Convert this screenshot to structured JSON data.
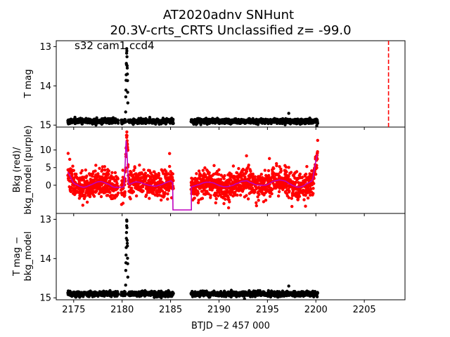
{
  "chart_data": {
    "type": "scatter",
    "title_line1": "AT2020adnv  SNHunt",
    "title_line2": "20.3V-crts_CRTS Unclassified z= -99.0",
    "annotation": "s32 cam1 ccd4",
    "xlabel": "BTJD −2 457 000",
    "xlim": [
      2173.2,
      2209.2
    ],
    "xticks": [
      2175,
      2180,
      2185,
      2190,
      2195,
      2200,
      2205
    ],
    "xtick_labels": [
      "2175",
      "2180",
      "2185",
      "2190",
      "2195",
      "2200",
      "2205"
    ],
    "colors": {
      "phot": "#000000",
      "bkg": "#ff0000",
      "model": "#bf00bf",
      "marker": "#ff0000"
    },
    "gaps": [
      [
        2179.6,
        2179.9
      ],
      [
        2185.3,
        2187.1
      ],
      [
        2200.2,
        2209.2
      ]
    ],
    "data_start": 2174.4,
    "event_x": 2180.48,
    "panels": [
      {
        "id": "tmag",
        "ylabel": "T mag",
        "ylim": [
          15.05,
          12.85
        ],
        "yticks": [
          13,
          14,
          15
        ],
        "ytick_labels": [
          "13",
          "14",
          "15"
        ],
        "baseline": 14.9,
        "scatter": 0.03,
        "peak": 12.9,
        "outliers": [
          [
            2197.2,
            14.7
          ]
        ],
        "vline_x": 2207.5
      },
      {
        "id": "bkg",
        "ylabel_line1": "Bkg (red)/",
        "ylabel_line2": "bkg_model (purple)",
        "ylim": [
          -8.0,
          16.5
        ],
        "yticks": [
          0,
          5,
          10
        ],
        "ytick_labels": [
          "0",
          "5",
          "10"
        ],
        "baseline": 0.3,
        "scatter": 2.0,
        "peak": 14.0,
        "model_peak": 15.0,
        "gap_value": -7.0,
        "end_rise": 10.0,
        "outliers": [
          [
            2184.9,
            9.0
          ]
        ]
      },
      {
        "id": "tmag_bkg",
        "ylabel_line1": "T mag −",
        "ylabel_line2": "bkg_model",
        "ylim": [
          15.05,
          12.85
        ],
        "yticks": [
          13,
          14,
          15
        ],
        "ytick_labels": [
          "13",
          "14",
          "15"
        ],
        "baseline": 14.9,
        "scatter": 0.03,
        "peak": 12.9,
        "outliers": [
          [
            2197.2,
            14.7
          ]
        ]
      }
    ]
  }
}
